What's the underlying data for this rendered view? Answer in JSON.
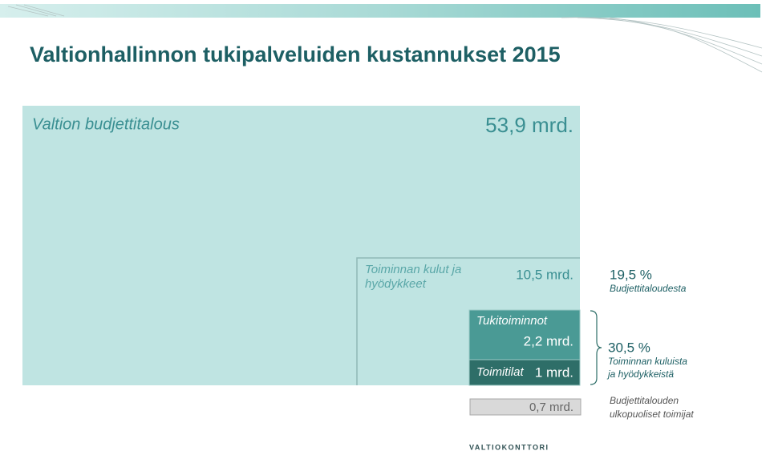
{
  "header": {
    "title": "Valtionhallinnon tukipalveluiden kustannukset 2015"
  },
  "boxes": [
    {
      "label": [
        "Valtion budjettitalous"
      ],
      "value": "53,9 mrd."
    },
    {
      "label": [
        "Toiminnan kulut ja",
        "hyödykkeet"
      ],
      "value": "10,5 mrd."
    },
    {
      "label": [
        "Tukitoiminnot"
      ],
      "value": "2,2 mrd."
    },
    {
      "label": [
        "Toimitilat"
      ],
      "value": "1 mrd."
    },
    {
      "value": "0,7 mrd."
    }
  ],
  "notes": [
    {
      "percent": "19,5 %",
      "text": [
        "Budjettitaloudesta"
      ]
    },
    {
      "percent": "30,5 %",
      "text": [
        "Toiminnan kuluista",
        "ja hyödykkeistä"
      ]
    },
    {
      "text": [
        "Budjettitalouden",
        "ulkopuoliset toimijat"
      ]
    }
  ],
  "logo": "VALTIOKONTTORI"
}
